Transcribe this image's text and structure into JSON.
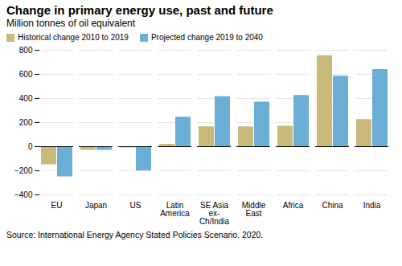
{
  "chart_data": {
    "type": "bar",
    "title": "Change in primary energy use, past and future",
    "subtitle": "Million tonnes of oil equivalent",
    "source": "Source: International Energy Agency Stated Policies Scenario. 2020.",
    "categories": [
      "EU",
      "Japan",
      "US",
      "Latin\nAmerica",
      "SE Asia\nex-\nCh/India",
      "Middle\nEast",
      "Africa",
      "China",
      "India"
    ],
    "series": [
      {
        "name": "Historical change 2010 to 2019",
        "color": "#c9b97b",
        "values": [
          -150,
          -30,
          -10,
          20,
          165,
          165,
          170,
          755,
          225
        ]
      },
      {
        "name": "Projected change 2019 to 2040",
        "color": "#6aaed5",
        "values": [
          -250,
          -30,
          -200,
          245,
          415,
          370,
          425,
          585,
          640
        ]
      }
    ],
    "ylim": [
      -400,
      800
    ],
    "yticks": [
      -400,
      -200,
      0,
      200,
      400,
      600,
      800
    ],
    "grid": true,
    "legend": "upper left"
  }
}
